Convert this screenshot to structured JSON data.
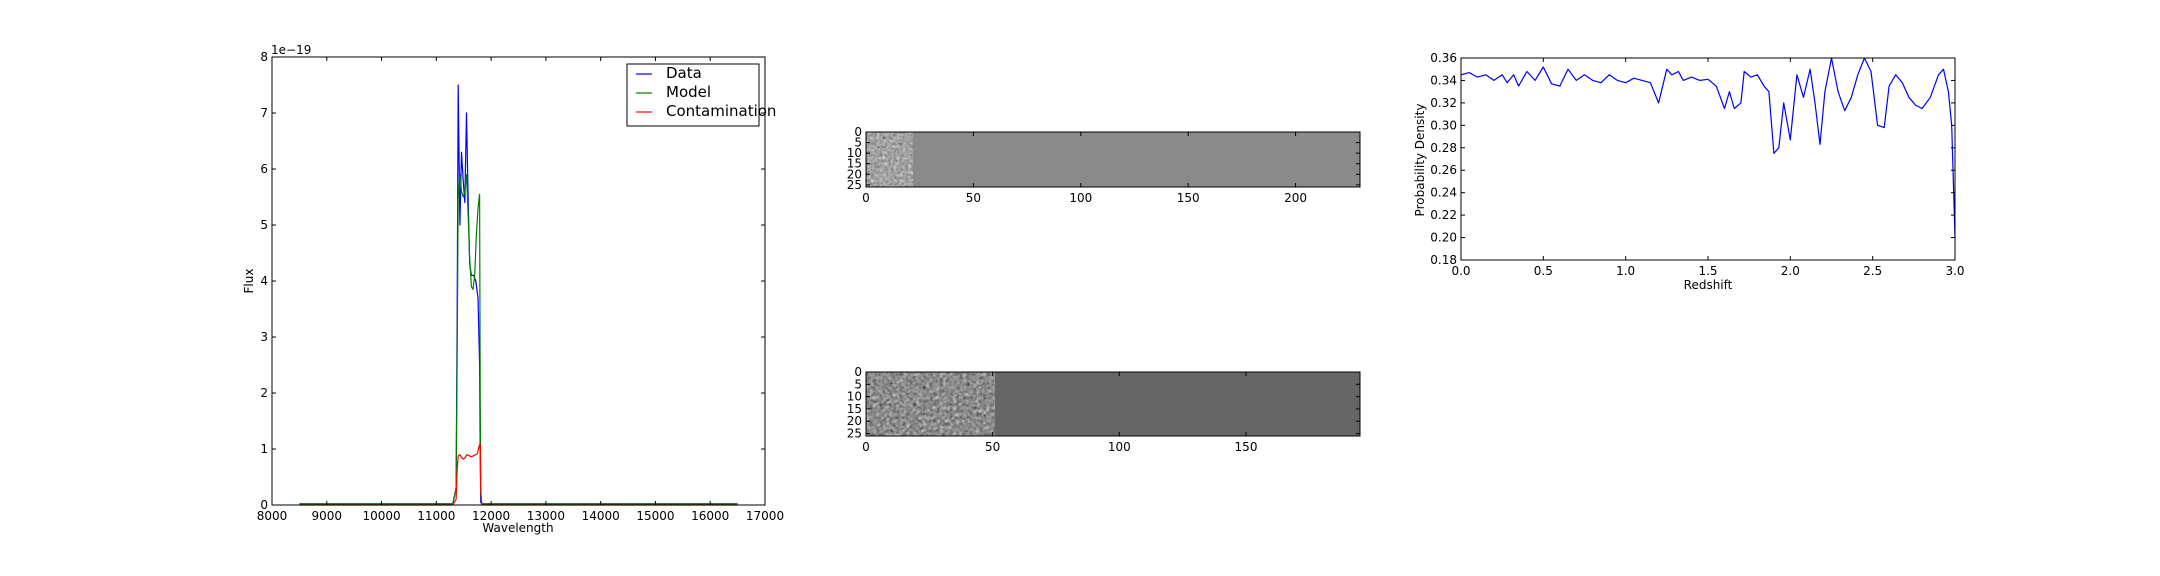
{
  "chart_data": [
    {
      "type": "line",
      "xlabel": "Wavelength",
      "ylabel": "Flux",
      "offset_text": "1e−19",
      "xlim": [
        8000,
        17000
      ],
      "ylim": [
        0,
        8
      ],
      "x_ticks": [
        8000,
        9000,
        10000,
        11000,
        12000,
        13000,
        14000,
        15000,
        16000,
        17000
      ],
      "y_ticks": [
        0,
        1,
        2,
        3,
        4,
        5,
        6,
        7,
        8
      ],
      "legend_position": "top-right",
      "series": [
        {
          "name": "Data",
          "color": "#0000ff",
          "x": [
            8500,
            11300,
            11360,
            11380,
            11400,
            11430,
            11460,
            11490,
            11520,
            11550,
            11580,
            11610,
            11640,
            11680,
            11720,
            11760,
            11790,
            11800,
            11810,
            11830,
            12500,
            16500
          ],
          "y": [
            0.02,
            0.02,
            0.3,
            3.2,
            7.5,
            5.0,
            6.3,
            5.8,
            5.4,
            7.0,
            5.5,
            4.3,
            4.1,
            4.1,
            4.0,
            3.7,
            2.5,
            1.0,
            0.05,
            0.02,
            0.02,
            0.02
          ]
        },
        {
          "name": "Model",
          "color": "#008000",
          "x": [
            8500,
            11300,
            11360,
            11380,
            11400,
            11430,
            11460,
            11490,
            11520,
            11550,
            11580,
            11610,
            11640,
            11670,
            11700,
            11730,
            11760,
            11790,
            11800,
            11810,
            11830,
            12500,
            16500
          ],
          "y": [
            0.02,
            0.02,
            0.3,
            2.5,
            5.5,
            5.9,
            5.6,
            5.5,
            5.6,
            5.9,
            5.2,
            4.4,
            3.9,
            3.85,
            4.1,
            4.8,
            5.3,
            5.55,
            2.0,
            0.2,
            0.02,
            0.02,
            0.02
          ]
        },
        {
          "name": "Contamination",
          "color": "#ff0000",
          "x": [
            8500,
            11300,
            11360,
            11380,
            11400,
            11430,
            11460,
            11490,
            11520,
            11560,
            11600,
            11640,
            11680,
            11720,
            11750,
            11780,
            11800,
            11810,
            11830,
            12500,
            16500
          ],
          "y": [
            0.0,
            0.0,
            0.1,
            0.6,
            0.88,
            0.9,
            0.85,
            0.82,
            0.84,
            0.9,
            0.88,
            0.86,
            0.88,
            0.9,
            0.92,
            1.05,
            1.1,
            0.3,
            0.0,
            0.0,
            0.0
          ]
        }
      ]
    },
    {
      "type": "heatmap",
      "x_ticks": [
        0,
        50,
        100,
        150,
        200
      ],
      "y_ticks": [
        0,
        5,
        10,
        15,
        20,
        25
      ],
      "xlim": [
        0,
        230
      ],
      "ylim": [
        0,
        26
      ],
      "textured_width": 22,
      "background_color": "#8a8a8a"
    },
    {
      "type": "heatmap",
      "x_ticks": [
        0,
        50,
        100,
        150
      ],
      "y_ticks": [
        0,
        5,
        10,
        15,
        20,
        25
      ],
      "xlim": [
        0,
        195
      ],
      "ylim": [
        0,
        26
      ],
      "textured_width": 51,
      "background_color": "#666666"
    },
    {
      "type": "line",
      "xlabel": "Redshift",
      "ylabel": "Probability Density",
      "xlim": [
        0.0,
        3.0
      ],
      "ylim": [
        0.18,
        0.36
      ],
      "x_ticks": [
        "0.0",
        "0.5",
        "1.0",
        "1.5",
        "2.0",
        "2.5",
        "3.0"
      ],
      "y_ticks": [
        "0.18",
        "0.20",
        "0.22",
        "0.24",
        "0.26",
        "0.28",
        "0.30",
        "0.32",
        "0.34",
        "0.36"
      ],
      "series": [
        {
          "color": "#0000ff",
          "x": [
            0.0,
            0.05,
            0.1,
            0.15,
            0.2,
            0.25,
            0.28,
            0.32,
            0.35,
            0.4,
            0.45,
            0.5,
            0.55,
            0.6,
            0.65,
            0.7,
            0.75,
            0.8,
            0.85,
            0.9,
            0.95,
            1.0,
            1.05,
            1.1,
            1.15,
            1.2,
            1.25,
            1.28,
            1.32,
            1.35,
            1.4,
            1.45,
            1.5,
            1.55,
            1.6,
            1.63,
            1.66,
            1.7,
            1.72,
            1.76,
            1.8,
            1.84,
            1.87,
            1.9,
            1.93,
            1.96,
            2.0,
            2.04,
            2.08,
            2.12,
            2.15,
            2.18,
            2.21,
            2.25,
            2.29,
            2.33,
            2.37,
            2.41,
            2.45,
            2.49,
            2.53,
            2.57,
            2.6,
            2.64,
            2.68,
            2.72,
            2.76,
            2.8,
            2.85,
            2.9,
            2.93,
            2.96,
            2.98,
            3.0
          ],
          "y": [
            0.345,
            0.347,
            0.343,
            0.345,
            0.34,
            0.345,
            0.338,
            0.345,
            0.335,
            0.348,
            0.34,
            0.352,
            0.337,
            0.335,
            0.35,
            0.34,
            0.345,
            0.34,
            0.338,
            0.345,
            0.34,
            0.338,
            0.342,
            0.34,
            0.338,
            0.32,
            0.35,
            0.345,
            0.348,
            0.34,
            0.343,
            0.34,
            0.341,
            0.335,
            0.315,
            0.33,
            0.315,
            0.32,
            0.348,
            0.343,
            0.345,
            0.335,
            0.33,
            0.275,
            0.28,
            0.32,
            0.287,
            0.345,
            0.325,
            0.35,
            0.32,
            0.283,
            0.33,
            0.36,
            0.33,
            0.313,
            0.325,
            0.345,
            0.36,
            0.348,
            0.3,
            0.298,
            0.335,
            0.345,
            0.338,
            0.325,
            0.318,
            0.315,
            0.325,
            0.345,
            0.35,
            0.33,
            0.3,
            0.2
          ]
        }
      ]
    }
  ]
}
